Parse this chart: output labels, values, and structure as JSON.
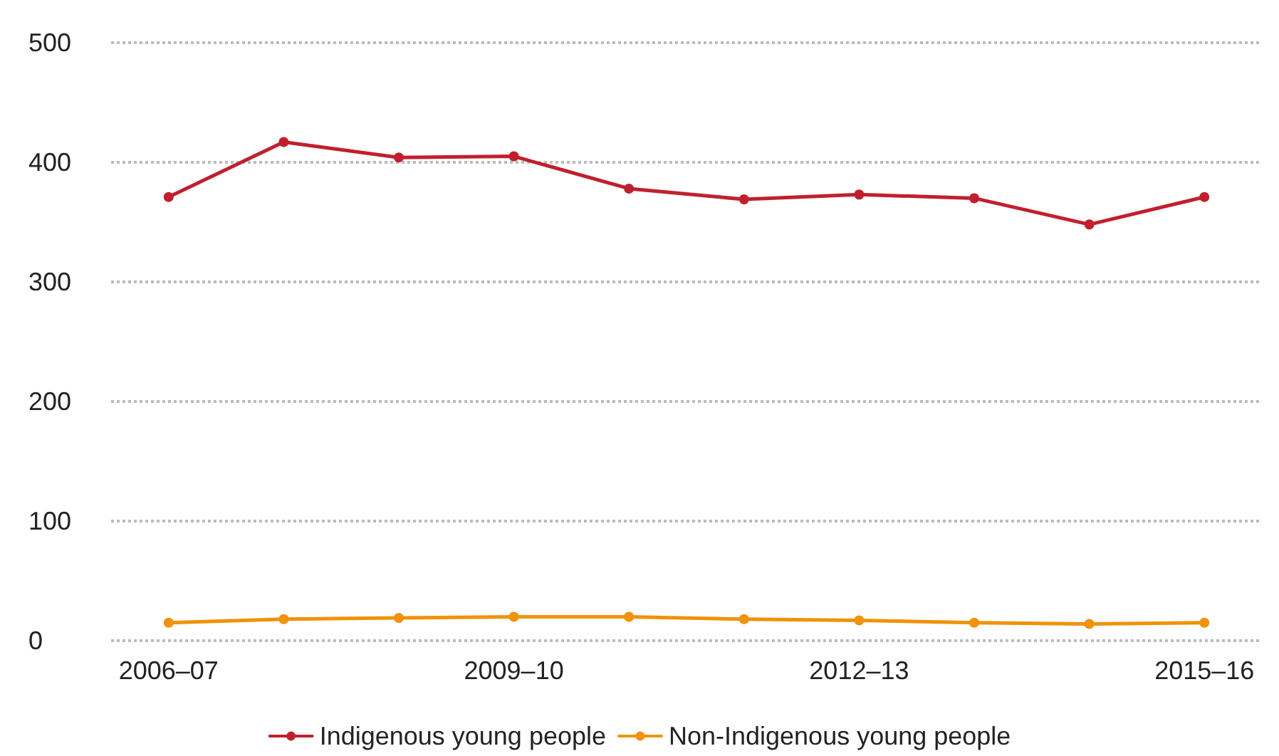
{
  "chart_data": {
    "type": "line",
    "categories": [
      "2006–07",
      null,
      null,
      "2009–10",
      null,
      null,
      "2012–13",
      null,
      null,
      "2015–16"
    ],
    "series": [
      {
        "name": "Indigenous young people",
        "color": "#c0202e",
        "values": [
          371,
          417,
          404,
          405,
          378,
          369,
          373,
          370,
          348,
          371
        ]
      },
      {
        "name": "Non-Indigenous young people",
        "color": "#f0920a",
        "values": [
          15,
          18,
          19,
          20,
          20,
          18,
          17,
          15,
          14,
          15
        ]
      }
    ],
    "ylim": [
      0,
      500
    ],
    "yticks": [
      0,
      100,
      200,
      300,
      400,
      500
    ],
    "grid": "y",
    "legend": "bottom",
    "marker": "circle",
    "line_style": "solid"
  }
}
